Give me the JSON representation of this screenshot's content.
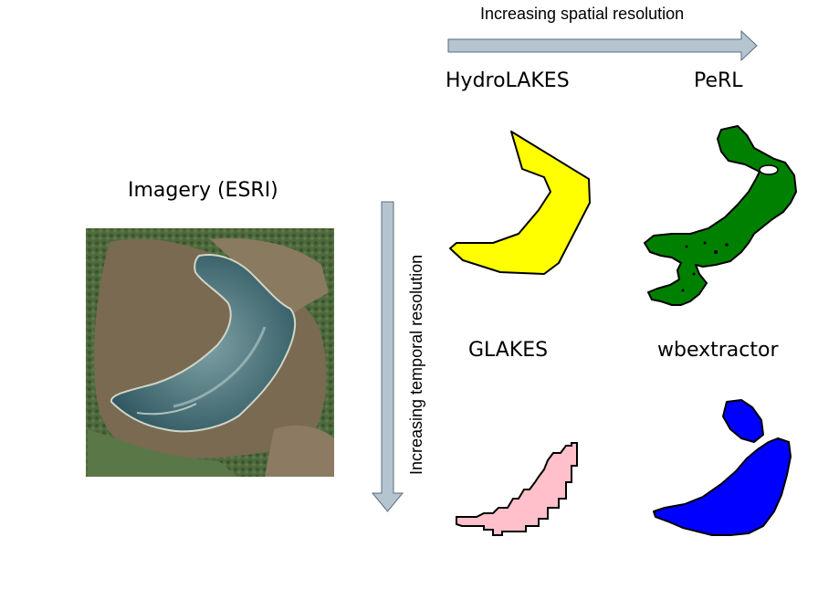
{
  "axes": {
    "spatial_label": "Increasing spatial resolution",
    "temporal_label": "Increasing temporal resolution",
    "arrow_color": "#b4c4d0",
    "arrow_outline": "#5c6b78"
  },
  "panels": {
    "imagery_title": "Imagery (ESRI)",
    "hydrolakes_title": "HydroLAKES",
    "perl_title": "PeRL",
    "glakes_title": "GLAKES",
    "wbextractor_title": "wbextractor"
  },
  "colors": {
    "hydrolakes": "#ffff00",
    "perl": "#008000",
    "glakes": "#ffc0cb",
    "wbextractor": "#0000ff"
  }
}
